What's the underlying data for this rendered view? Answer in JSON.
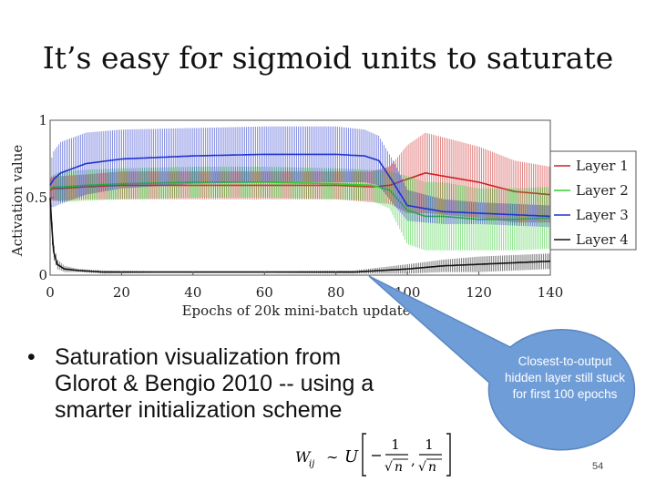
{
  "slide": {
    "title": "It’s easy for sigmoid units to saturate",
    "bullet": "Saturation visualization from Glorot & Bengio 2010 -- using a smarter initialization scheme",
    "bullet_marker": "•",
    "callout": "Closest-to-output hidden layer still stuck for first 100 epochs",
    "page_number": "54",
    "formula": {
      "lhs": "W",
      "sub": "ij",
      "rel": "∼",
      "dist": "U",
      "num": "1",
      "den": "n"
    }
  },
  "colors": {
    "layer1": "#cc2222",
    "layer2": "#33cc33",
    "layer3": "#2233cc",
    "layer4": "#111111",
    "callout": "#6f9dd8"
  },
  "chart_data": {
    "type": "line",
    "title": "",
    "xlabel": "Epochs of 20k mini-batch updates",
    "ylabel": "Activation value",
    "xlim": [
      0,
      140
    ],
    "ylim": [
      0,
      1
    ],
    "xticks": [
      0,
      20,
      40,
      60,
      80,
      100,
      120,
      140
    ],
    "yticks": [
      0,
      0.5,
      1
    ],
    "ytick_labels": [
      "0",
      "0.5",
      "1"
    ],
    "legend_position": "right",
    "series": [
      {
        "name": "Layer 1",
        "color": "#cc2222",
        "x": [
          0,
          1,
          3,
          10,
          20,
          40,
          60,
          80,
          90,
          95,
          100,
          105,
          110,
          120,
          130,
          140
        ],
        "mean": [
          0.55,
          0.56,
          0.56,
          0.57,
          0.58,
          0.58,
          0.58,
          0.58,
          0.57,
          0.58,
          0.62,
          0.66,
          0.64,
          0.6,
          0.54,
          0.52
        ],
        "spread": [
          0.07,
          0.08,
          0.08,
          0.08,
          0.09,
          0.09,
          0.09,
          0.09,
          0.1,
          0.12,
          0.22,
          0.26,
          0.25,
          0.23,
          0.2,
          0.18
        ]
      },
      {
        "name": "Layer 2",
        "color": "#33cc33",
        "x": [
          0,
          1,
          3,
          10,
          20,
          40,
          60,
          80,
          90,
          95,
          100,
          105,
          110,
          120,
          130,
          140
        ],
        "mean": [
          0.56,
          0.57,
          0.57,
          0.58,
          0.59,
          0.6,
          0.6,
          0.59,
          0.58,
          0.55,
          0.42,
          0.38,
          0.38,
          0.36,
          0.36,
          0.37
        ],
        "spread": [
          0.07,
          0.08,
          0.1,
          0.1,
          0.1,
          0.1,
          0.1,
          0.1,
          0.1,
          0.12,
          0.22,
          0.22,
          0.22,
          0.2,
          0.2,
          0.2
        ]
      },
      {
        "name": "Layer 3",
        "color": "#2233cc",
        "x": [
          0,
          1,
          3,
          10,
          20,
          40,
          60,
          80,
          88,
          92,
          96,
          100,
          110,
          120,
          130,
          140
        ],
        "mean": [
          0.58,
          0.62,
          0.66,
          0.72,
          0.75,
          0.77,
          0.78,
          0.78,
          0.77,
          0.74,
          0.6,
          0.45,
          0.41,
          0.4,
          0.39,
          0.38
        ],
        "spread": [
          0.14,
          0.18,
          0.2,
          0.2,
          0.19,
          0.18,
          0.18,
          0.18,
          0.17,
          0.16,
          0.14,
          0.1,
          0.08,
          0.07,
          0.07,
          0.07
        ]
      },
      {
        "name": "Layer 4",
        "color": "#111111",
        "x": [
          0,
          0.5,
          1,
          2,
          4,
          8,
          15,
          30,
          60,
          85,
          100,
          110,
          120,
          130,
          140
        ],
        "mean": [
          0.5,
          0.3,
          0.15,
          0.07,
          0.04,
          0.03,
          0.02,
          0.02,
          0.02,
          0.02,
          0.04,
          0.06,
          0.07,
          0.08,
          0.09
        ],
        "spread": [
          0.1,
          0.08,
          0.05,
          0.03,
          0.02,
          0.01,
          0.01,
          0.005,
          0.005,
          0.01,
          0.03,
          0.04,
          0.05,
          0.05,
          0.05
        ]
      }
    ]
  }
}
